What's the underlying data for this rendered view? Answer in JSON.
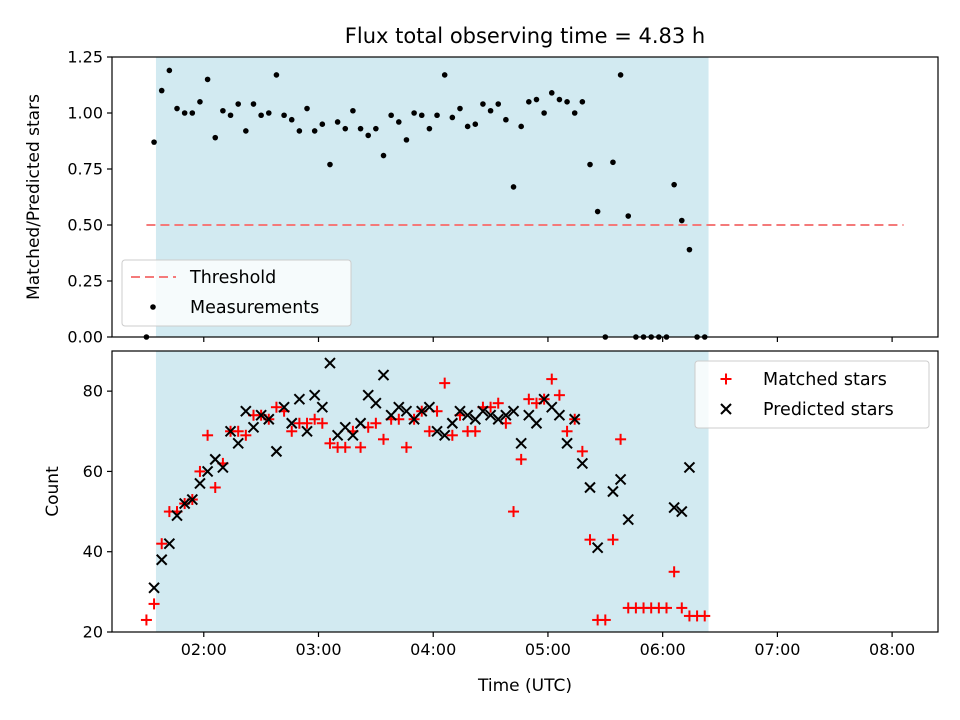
{
  "chart_data": [
    {
      "type": "scatter",
      "title": "Flux total observing time = 4.83 h",
      "xlabel": "",
      "ylabel": "Matched/Predicted stars",
      "xlim": [
        "01:12",
        "08:24"
      ],
      "ylim": [
        0,
        1.25
      ],
      "yticks": [
        "0.00",
        "0.25",
        "0.50",
        "0.75",
        "1.00",
        "1.25"
      ],
      "xticks": [
        "02:00",
        "03:00",
        "04:00",
        "05:00",
        "06:00",
        "07:00",
        "08:00"
      ],
      "shaded_interval": [
        "01:35",
        "06:24"
      ],
      "threshold": {
        "name": "Threshold",
        "value": 0.5,
        "x_range": [
          "01:30",
          "08:06"
        ],
        "color": "#f47a7a"
      },
      "series": [
        {
          "name": "Measurements",
          "color": "#000000",
          "marker": "dot",
          "points": [
            [
              "01:30",
              0.0
            ],
            [
              "01:34",
              0.87
            ],
            [
              "01:38",
              1.1
            ],
            [
              "01:42",
              1.19
            ],
            [
              "01:46",
              1.02
            ],
            [
              "01:50",
              1.0
            ],
            [
              "01:54",
              1.0
            ],
            [
              "01:58",
              1.05
            ],
            [
              "02:02",
              1.15
            ],
            [
              "02:06",
              0.89
            ],
            [
              "02:10",
              1.01
            ],
            [
              "02:14",
              0.99
            ],
            [
              "02:18",
              1.04
            ],
            [
              "02:22",
              0.92
            ],
            [
              "02:26",
              1.04
            ],
            [
              "02:30",
              0.99
            ],
            [
              "02:34",
              1.0
            ],
            [
              "02:38",
              1.17
            ],
            [
              "02:42",
              0.99
            ],
            [
              "02:46",
              0.97
            ],
            [
              "02:50",
              0.92
            ],
            [
              "02:54",
              1.02
            ],
            [
              "02:58",
              0.92
            ],
            [
              "03:02",
              0.95
            ],
            [
              "03:06",
              0.77
            ],
            [
              "03:10",
              0.96
            ],
            [
              "03:14",
              0.93
            ],
            [
              "03:18",
              1.01
            ],
            [
              "03:22",
              0.93
            ],
            [
              "03:26",
              0.9
            ],
            [
              "03:30",
              0.93
            ],
            [
              "03:34",
              0.81
            ],
            [
              "03:38",
              0.99
            ],
            [
              "03:42",
              0.96
            ],
            [
              "03:46",
              0.88
            ],
            [
              "03:50",
              1.0
            ],
            [
              "03:54",
              0.99
            ],
            [
              "03:58",
              0.93
            ],
            [
              "04:02",
              0.99
            ],
            [
              "04:06",
              1.17
            ],
            [
              "04:10",
              0.98
            ],
            [
              "04:14",
              1.02
            ],
            [
              "04:18",
              0.94
            ],
            [
              "04:22",
              0.95
            ],
            [
              "04:26",
              1.04
            ],
            [
              "04:30",
              1.01
            ],
            [
              "04:34",
              1.04
            ],
            [
              "04:38",
              0.97
            ],
            [
              "04:42",
              0.67
            ],
            [
              "04:46",
              0.94
            ],
            [
              "04:50",
              1.05
            ],
            [
              "04:54",
              1.06
            ],
            [
              "04:58",
              1.0
            ],
            [
              "05:02",
              1.09
            ],
            [
              "05:06",
              1.06
            ],
            [
              "05:10",
              1.05
            ],
            [
              "05:14",
              1.0
            ],
            [
              "05:18",
              1.05
            ],
            [
              "05:22",
              0.77
            ],
            [
              "05:26",
              0.56
            ],
            [
              "05:30",
              0.0
            ],
            [
              "05:34",
              0.78
            ],
            [
              "05:38",
              1.17
            ],
            [
              "05:42",
              0.54
            ],
            [
              "05:46",
              0.0
            ],
            [
              "05:50",
              0.0
            ],
            [
              "05:54",
              0.0
            ],
            [
              "05:58",
              0.0
            ],
            [
              "06:02",
              0.0
            ],
            [
              "06:06",
              0.68
            ],
            [
              "06:10",
              0.52
            ],
            [
              "06:14",
              0.39
            ],
            [
              "06:18",
              0.0
            ],
            [
              "06:22",
              0.0
            ]
          ]
        }
      ]
    },
    {
      "type": "scatter",
      "title": "",
      "xlabel": "Time (UTC)",
      "ylabel": "Count",
      "xlim": [
        "01:12",
        "08:24"
      ],
      "ylim": [
        20,
        90
      ],
      "yticks": [
        "20",
        "40",
        "60",
        "80"
      ],
      "xticks": [
        "02:00",
        "03:00",
        "04:00",
        "05:00",
        "06:00",
        "07:00",
        "08:00"
      ],
      "shaded_interval": [
        "01:35",
        "06:24"
      ],
      "series": [
        {
          "name": "Matched stars",
          "color": "#ff0000",
          "marker": "plus",
          "points": [
            [
              "01:30",
              23
            ],
            [
              "01:34",
              27
            ],
            [
              "01:38",
              42
            ],
            [
              "01:42",
              50
            ],
            [
              "01:46",
              50
            ],
            [
              "01:50",
              52
            ],
            [
              "01:54",
              53
            ],
            [
              "01:58",
              60
            ],
            [
              "02:02",
              69
            ],
            [
              "02:06",
              56
            ],
            [
              "02:10",
              62
            ],
            [
              "02:14",
              70
            ],
            [
              "02:18",
              70
            ],
            [
              "02:22",
              69
            ],
            [
              "02:26",
              74
            ],
            [
              "02:30",
              74
            ],
            [
              "02:34",
              73
            ],
            [
              "02:38",
              76
            ],
            [
              "02:42",
              75
            ],
            [
              "02:46",
              70
            ],
            [
              "02:50",
              72
            ],
            [
              "02:54",
              72
            ],
            [
              "02:58",
              73
            ],
            [
              "03:02",
              72
            ],
            [
              "03:06",
              67
            ],
            [
              "03:10",
              66
            ],
            [
              "03:14",
              66
            ],
            [
              "03:18",
              70
            ],
            [
              "03:22",
              66
            ],
            [
              "03:26",
              71
            ],
            [
              "03:30",
              72
            ],
            [
              "03:34",
              68
            ],
            [
              "03:38",
              73
            ],
            [
              "03:42",
              73
            ],
            [
              "03:46",
              66
            ],
            [
              "03:50",
              73
            ],
            [
              "03:54",
              75
            ],
            [
              "03:58",
              70
            ],
            [
              "04:02",
              75
            ],
            [
              "04:06",
              82
            ],
            [
              "04:10",
              69
            ],
            [
              "04:14",
              74
            ],
            [
              "04:18",
              70
            ],
            [
              "04:22",
              70
            ],
            [
              "04:26",
              76
            ],
            [
              "04:30",
              76
            ],
            [
              "04:34",
              77
            ],
            [
              "04:38",
              72
            ],
            [
              "04:42",
              50
            ],
            [
              "04:46",
              63
            ],
            [
              "04:50",
              78
            ],
            [
              "04:54",
              77
            ],
            [
              "04:58",
              78
            ],
            [
              "05:02",
              83
            ],
            [
              "05:06",
              79
            ],
            [
              "05:10",
              70
            ],
            [
              "05:14",
              73
            ],
            [
              "05:18",
              65
            ],
            [
              "05:22",
              43
            ],
            [
              "05:26",
              23
            ],
            [
              "05:30",
              23
            ],
            [
              "05:34",
              43
            ],
            [
              "05:38",
              68
            ],
            [
              "05:42",
              26
            ],
            [
              "05:46",
              26
            ],
            [
              "05:50",
              26
            ],
            [
              "05:54",
              26
            ],
            [
              "05:58",
              26
            ],
            [
              "06:02",
              26
            ],
            [
              "06:06",
              35
            ],
            [
              "06:10",
              26
            ],
            [
              "06:14",
              24
            ],
            [
              "06:18",
              24
            ],
            [
              "06:22",
              24
            ]
          ]
        },
        {
          "name": "Predicted stars",
          "color": "#000000",
          "marker": "x",
          "points": [
            [
              "01:34",
              31
            ],
            [
              "01:38",
              38
            ],
            [
              "01:42",
              42
            ],
            [
              "01:46",
              49
            ],
            [
              "01:50",
              52
            ],
            [
              "01:54",
              53
            ],
            [
              "01:58",
              57
            ],
            [
              "02:02",
              60
            ],
            [
              "02:06",
              63
            ],
            [
              "02:10",
              61
            ],
            [
              "02:14",
              70
            ],
            [
              "02:18",
              67
            ],
            [
              "02:22",
              75
            ],
            [
              "02:26",
              71
            ],
            [
              "02:30",
              74
            ],
            [
              "02:34",
              73
            ],
            [
              "02:38",
              65
            ],
            [
              "02:42",
              76
            ],
            [
              "02:46",
              72
            ],
            [
              "02:50",
              78
            ],
            [
              "02:54",
              70
            ],
            [
              "02:58",
              79
            ],
            [
              "03:02",
              76
            ],
            [
              "03:06",
              87
            ],
            [
              "03:10",
              69
            ],
            [
              "03:14",
              71
            ],
            [
              "03:18",
              69
            ],
            [
              "03:22",
              72
            ],
            [
              "03:26",
              79
            ],
            [
              "03:30",
              77
            ],
            [
              "03:34",
              84
            ],
            [
              "03:38",
              74
            ],
            [
              "03:42",
              76
            ],
            [
              "03:46",
              75
            ],
            [
              "03:50",
              73
            ],
            [
              "03:54",
              75
            ],
            [
              "03:58",
              76
            ],
            [
              "04:02",
              70
            ],
            [
              "04:06",
              69
            ],
            [
              "04:10",
              72
            ],
            [
              "04:14",
              75
            ],
            [
              "04:18",
              74
            ],
            [
              "04:22",
              73
            ],
            [
              "04:26",
              75
            ],
            [
              "04:30",
              74
            ],
            [
              "04:34",
              73
            ],
            [
              "04:38",
              74
            ],
            [
              "04:42",
              75
            ],
            [
              "04:46",
              67
            ],
            [
              "04:50",
              74
            ],
            [
              "04:54",
              72
            ],
            [
              "04:58",
              78
            ],
            [
              "05:02",
              76
            ],
            [
              "05:06",
              74
            ],
            [
              "05:10",
              67
            ],
            [
              "05:14",
              73
            ],
            [
              "05:18",
              62
            ],
            [
              "05:22",
              56
            ],
            [
              "05:26",
              41
            ],
            [
              "05:34",
              55
            ],
            [
              "05:38",
              58
            ],
            [
              "05:42",
              48
            ],
            [
              "06:06",
              51
            ],
            [
              "06:10",
              50
            ],
            [
              "06:14",
              61
            ]
          ]
        }
      ]
    }
  ]
}
